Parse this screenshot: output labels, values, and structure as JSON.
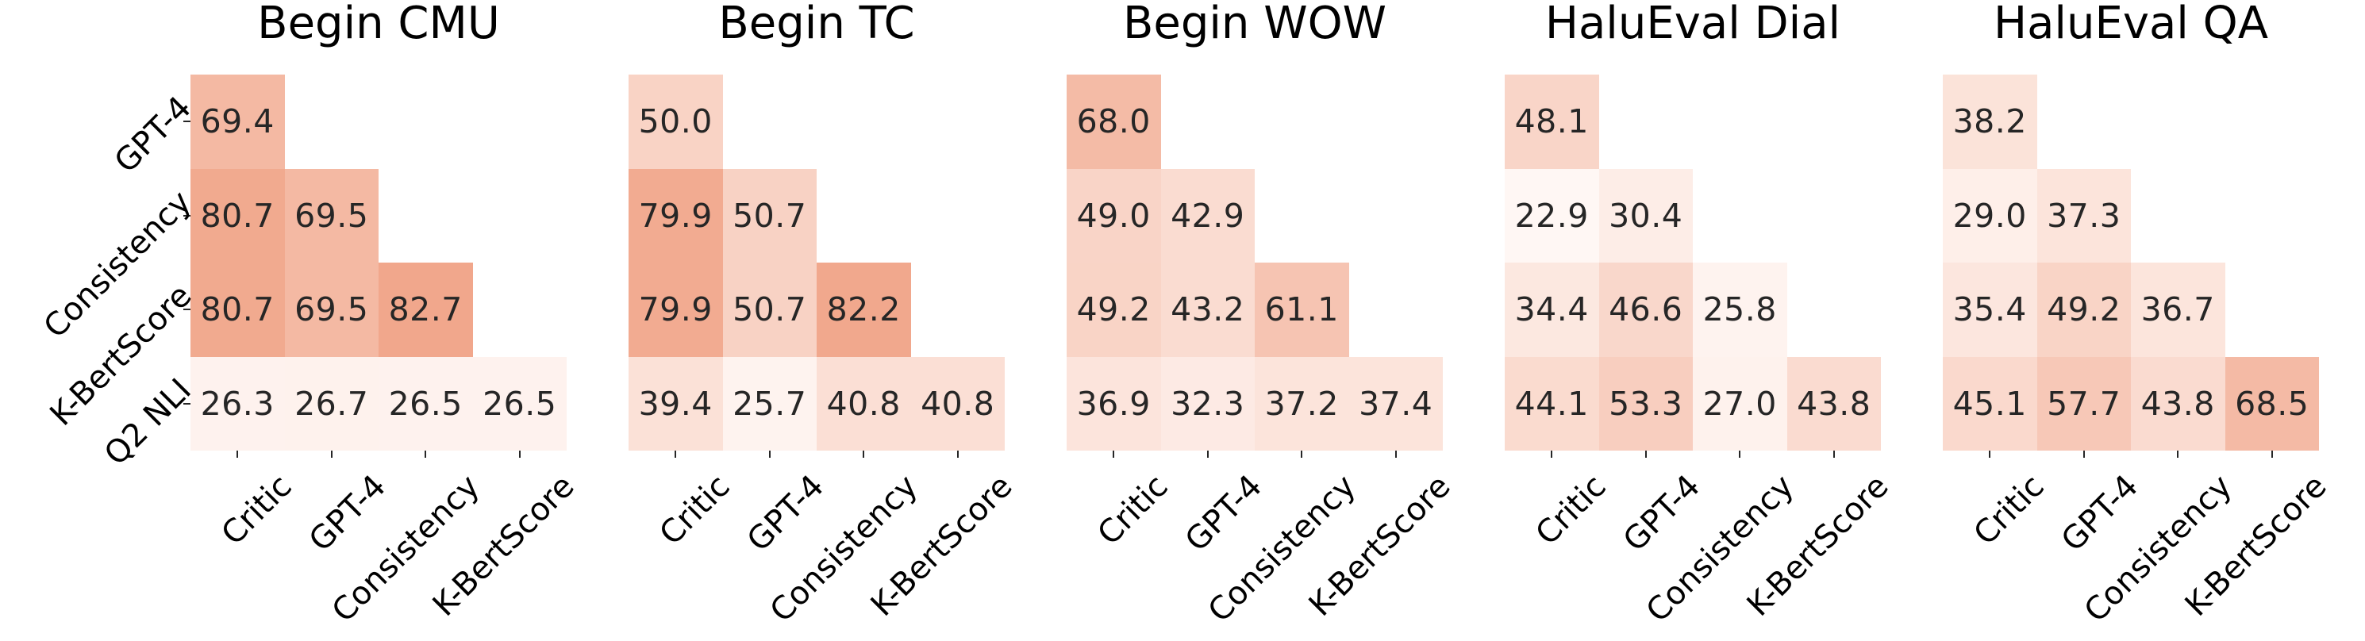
{
  "chart_data": {
    "type": "heatmap",
    "subtype": "lower-triangular annotated correlation heatmaps, 5 side-by-side subplots",
    "row_labels": [
      "GPT-4",
      "Consistency",
      "K-BertScore",
      "Q2 NLI"
    ],
    "col_labels": [
      "Critic",
      "GPT-4",
      "Consistency",
      "K-BertScore"
    ],
    "annotation_format": "one decimal place",
    "colormap": {
      "type": "linear",
      "vmin": 22.9,
      "vmax": 82.7,
      "color_min": "#fff7f4",
      "color_max": "#f1a78c",
      "annotation_text_color": "#262626",
      "tick_color": "#262626"
    },
    "layout_hints": {
      "row_labels_shown_only_on_first_panel": true,
      "tick_label_rotation_deg": 45,
      "colorbar": false,
      "gridlines": false,
      "background": "#ffffff"
    },
    "panels": [
      {
        "title": "Begin CMU",
        "values": [
          [
            69.4
          ],
          [
            80.7,
            69.5
          ],
          [
            80.7,
            69.5,
            82.7
          ],
          [
            26.3,
            26.7,
            26.5,
            26.5
          ]
        ]
      },
      {
        "title": "Begin TC",
        "values": [
          [
            50.0
          ],
          [
            79.9,
            50.7
          ],
          [
            79.9,
            50.7,
            82.2
          ],
          [
            39.4,
            25.7,
            40.8,
            40.8
          ]
        ]
      },
      {
        "title": "Begin WOW",
        "values": [
          [
            68.0
          ],
          [
            49.0,
            42.9
          ],
          [
            49.2,
            43.2,
            61.1
          ],
          [
            36.9,
            32.3,
            37.2,
            37.4
          ]
        ]
      },
      {
        "title": "HaluEval Dial",
        "values": [
          [
            48.1
          ],
          [
            22.9,
            30.4
          ],
          [
            34.4,
            46.6,
            25.8
          ],
          [
            44.1,
            53.3,
            27.0,
            43.8
          ]
        ]
      },
      {
        "title": "HaluEval QA",
        "values": [
          [
            38.2
          ],
          [
            29.0,
            37.3
          ],
          [
            35.4,
            49.2,
            36.7
          ],
          [
            45.1,
            57.7,
            43.8,
            68.5
          ]
        ]
      }
    ]
  }
}
